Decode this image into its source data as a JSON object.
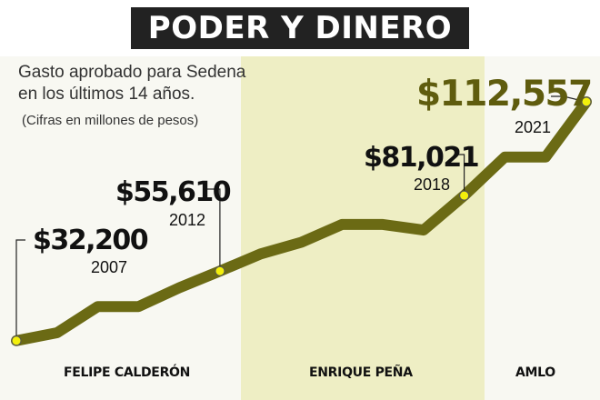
{
  "title": "PODER Y DINERO",
  "subtitle_line1": "Gasto aprobado para Sedena",
  "subtitle_line2": "en los últimos 14 años.",
  "note": "(Cifras en millones de pesos)",
  "colors": {
    "title_bg": "#222222",
    "title_text": "#ffffff",
    "background": "#f8f8f2",
    "highlight_band": "#eeeec4",
    "line": "#6b6a14",
    "marker": "#f3f00b",
    "highlight_value": "#5f5c0e"
  },
  "periods": [
    "FELIPE CALDERÓN",
    "ENRIQUE PEÑA",
    "AMLO"
  ],
  "chart_data": {
    "type": "line",
    "x": [
      2007,
      2008,
      2009,
      2010,
      2011,
      2012,
      2013,
      2014,
      2015,
      2016,
      2017,
      2018,
      2019,
      2020,
      2021
    ],
    "values": [
      32200,
      34900,
      43700,
      43700,
      50000,
      55610,
      61400,
      65300,
      71300,
      71300,
      69400,
      81021,
      94000,
      94000,
      112557
    ],
    "labels": [
      {
        "x": 2007,
        "value": "$32,200",
        "year": "2007"
      },
      {
        "x": 2012,
        "value": "$55,610",
        "year": "2012"
      },
      {
        "x": 2018,
        "value": "$81,021",
        "year": "2018"
      },
      {
        "x": 2021,
        "value": "$112,557",
        "year": "2021"
      }
    ],
    "highlight_band": [
      2013,
      2018
    ],
    "xlim": [
      2007,
      2021
    ],
    "ylim": [
      30000,
      115000
    ],
    "grid": false
  }
}
